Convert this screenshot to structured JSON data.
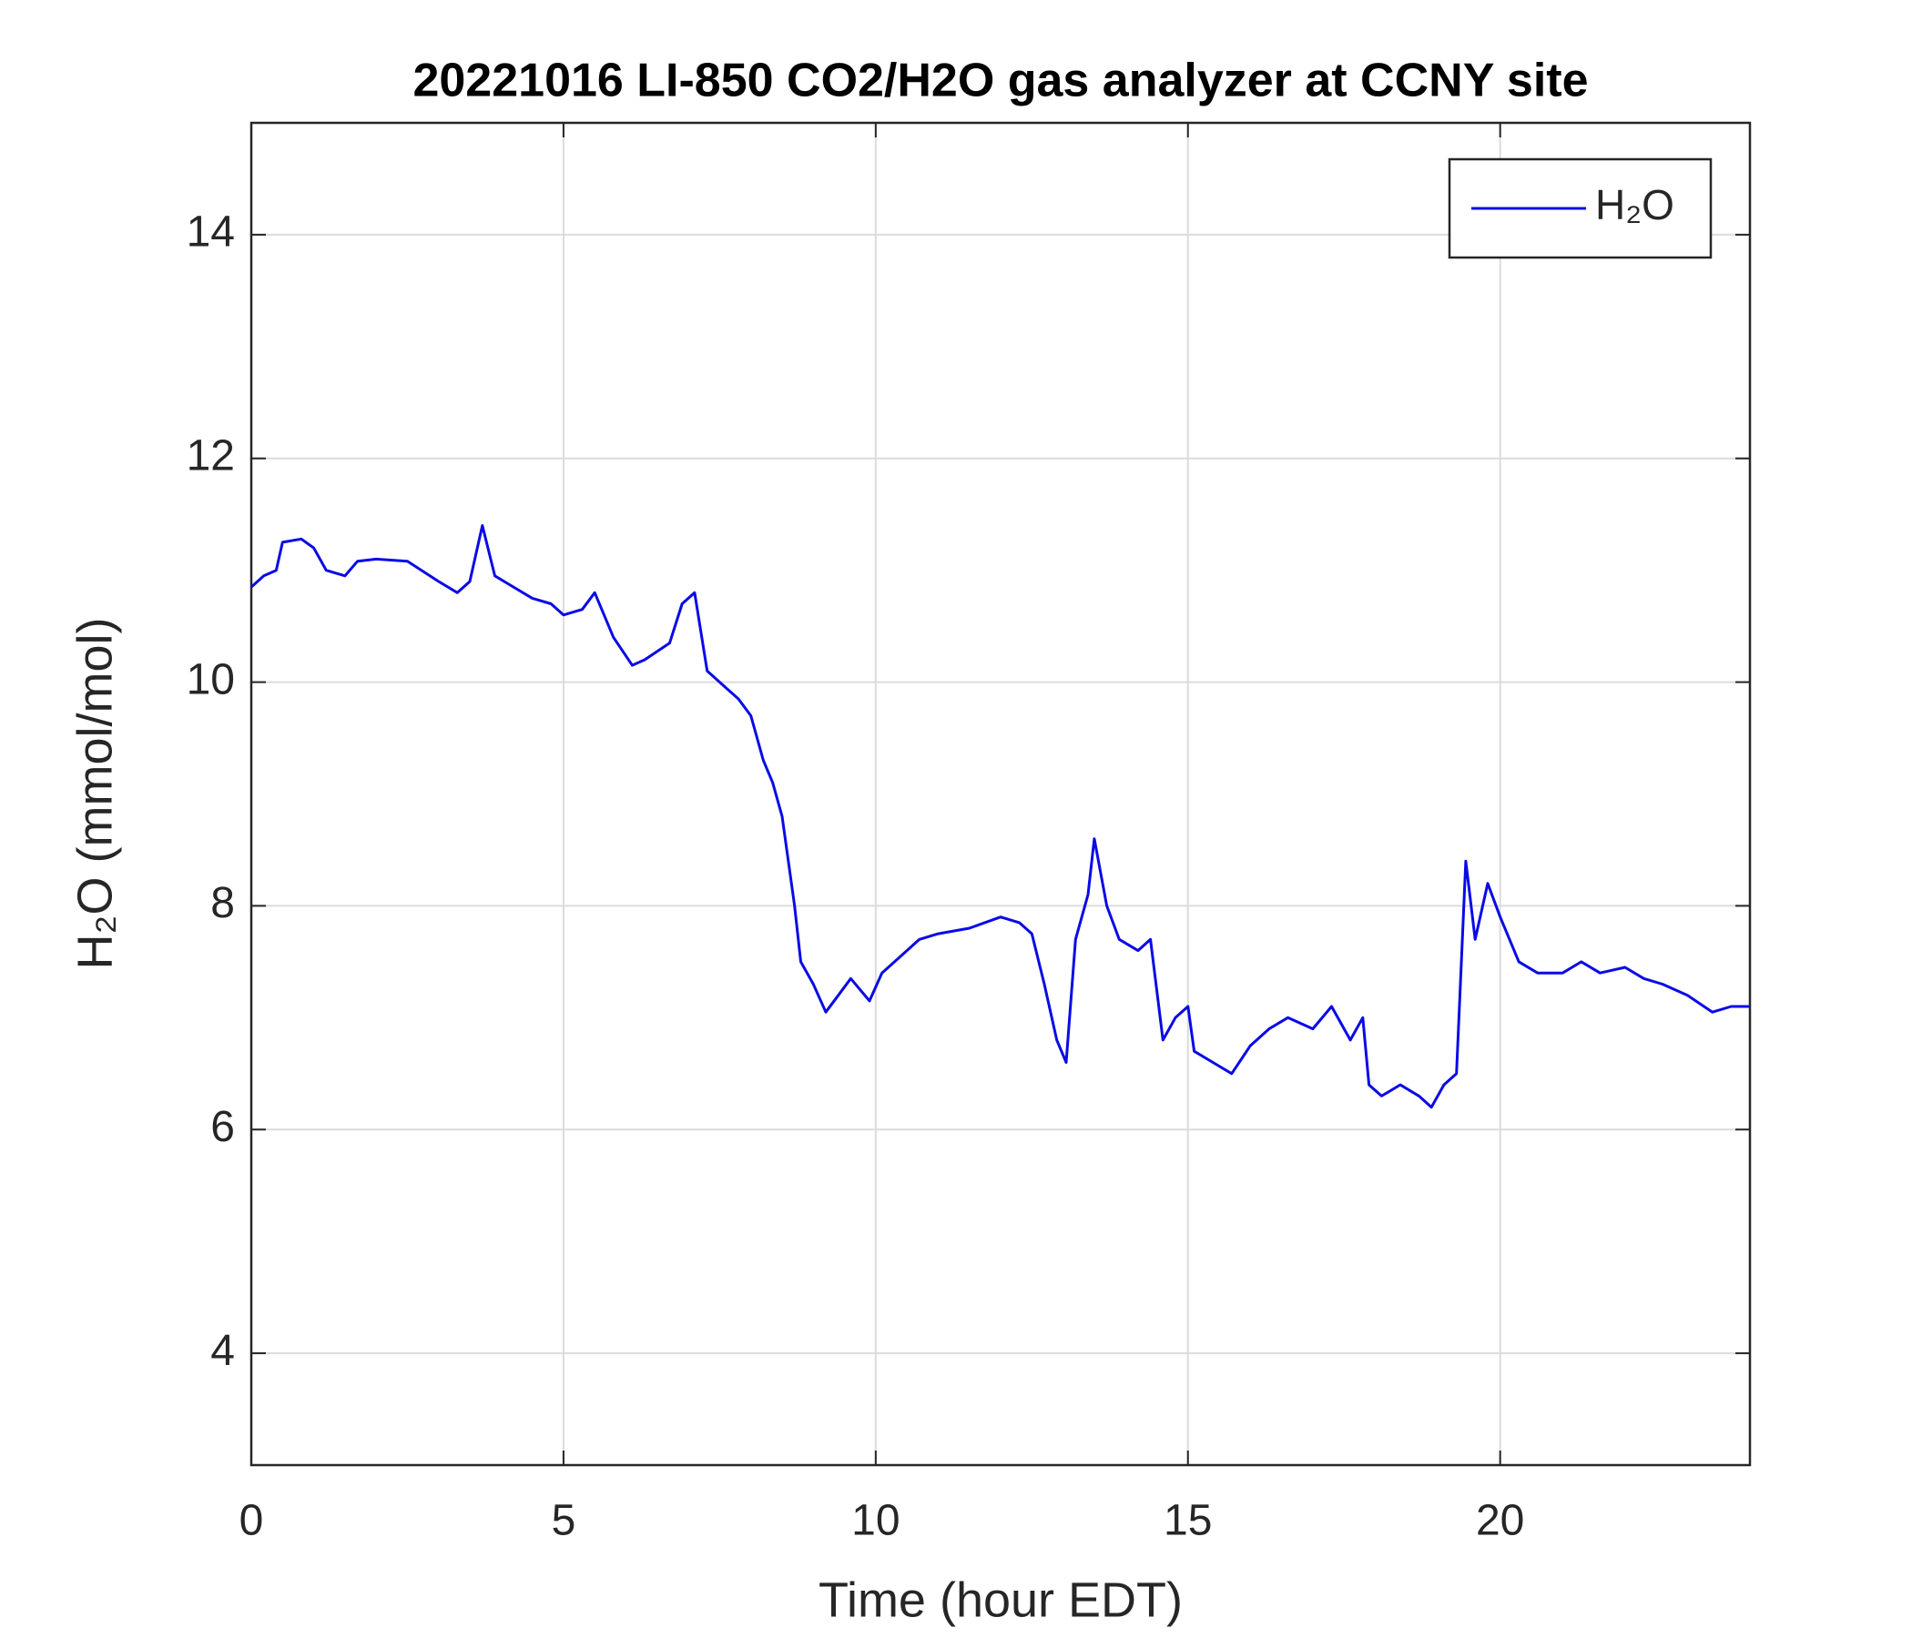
{
  "chart_data": {
    "type": "line",
    "title": "20221016 LI-850 CO2/H2O gas analyzer at CCNY site",
    "x_label": "Time (hour EDT)",
    "y_label": "H₂O (mmol/mol)",
    "x": [
      0,
      0.2,
      0.4,
      0.5,
      0.8,
      1.0,
      1.2,
      1.5,
      1.7,
      2.0,
      2.5,
      3.0,
      3.3,
      3.5,
      3.7,
      3.9,
      4.2,
      4.5,
      4.8,
      5.0,
      5.3,
      5.5,
      5.8,
      6.1,
      6.3,
      6.7,
      6.9,
      7.1,
      7.3,
      7.6,
      7.8,
      8.0,
      8.2,
      8.35,
      8.5,
      8.7,
      8.8,
      9.0,
      9.2,
      9.4,
      9.6,
      9.9,
      10.1,
      10.4,
      10.7,
      11.0,
      11.5,
      12.0,
      12.3,
      12.5,
      12.7,
      12.9,
      13.05,
      13.2,
      13.4,
      13.5,
      13.7,
      13.9,
      14.2,
      14.4,
      14.6,
      14.8,
      15.0,
      15.1,
      15.4,
      15.7,
      16.0,
      16.3,
      16.6,
      17.0,
      17.3,
      17.6,
      17.8,
      17.9,
      18.1,
      18.4,
      18.7,
      18.9,
      19.1,
      19.3,
      19.45,
      19.6,
      19.8,
      20.0,
      20.3,
      20.6,
      21.0,
      21.3,
      21.6,
      22.0,
      22.3,
      22.6,
      23.0,
      23.4,
      23.7,
      24.0
    ],
    "series": [
      {
        "name": "H₂O",
        "color": "#0a0ae6",
        "values": [
          10.85,
          10.95,
          11.0,
          11.25,
          11.28,
          11.2,
          11.0,
          10.95,
          11.08,
          11.1,
          11.08,
          10.9,
          10.8,
          10.9,
          11.4,
          10.95,
          10.85,
          10.75,
          10.7,
          10.6,
          10.65,
          10.8,
          10.4,
          10.15,
          10.2,
          10.35,
          10.7,
          10.8,
          10.1,
          9.95,
          9.85,
          9.7,
          9.3,
          9.1,
          8.8,
          8.0,
          7.5,
          7.3,
          7.05,
          7.2,
          7.35,
          7.15,
          7.4,
          7.55,
          7.7,
          7.75,
          7.8,
          7.9,
          7.85,
          7.75,
          7.3,
          6.8,
          6.6,
          7.7,
          8.1,
          8.6,
          8.0,
          7.7,
          7.6,
          7.7,
          6.8,
          7.0,
          7.1,
          6.7,
          6.6,
          6.5,
          6.75,
          6.9,
          7.0,
          6.9,
          7.1,
          6.8,
          7.0,
          6.4,
          6.3,
          6.4,
          6.3,
          6.2,
          6.4,
          6.5,
          8.4,
          7.7,
          8.2,
          7.9,
          7.5,
          7.4,
          7.4,
          7.5,
          7.4,
          7.45,
          7.35,
          7.3,
          7.2,
          7.05,
          7.1,
          7.1
        ]
      }
    ],
    "xlim": [
      0,
      24
    ],
    "xticks": [
      0,
      5,
      10,
      15,
      20
    ],
    "ylim": [
      3,
      15
    ],
    "yticks": [
      4,
      6,
      8,
      10,
      12,
      14
    ],
    "grid": true,
    "legend": "upper right"
  }
}
